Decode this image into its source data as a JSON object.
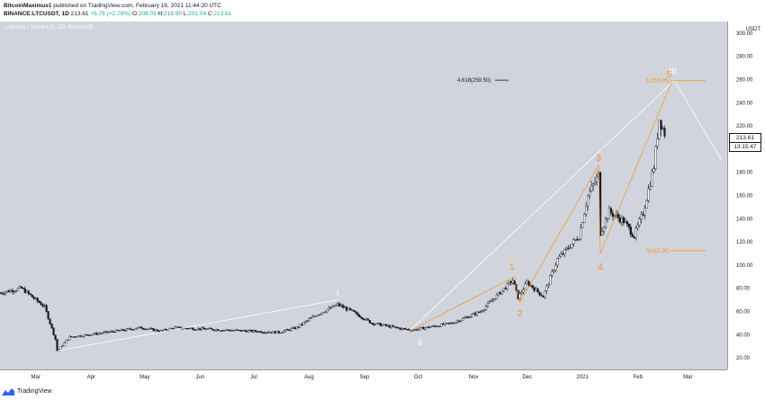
{
  "header": {
    "user": "BitcoinMaximus1",
    "published": "published on TradingView.com, February 16, 2021 11:44:20 UTC",
    "symbol": "BINANCE:LTCUSDT, 1D",
    "last": "213.61",
    "change": "+5.78 (+2.78%)",
    "o_label": "O:",
    "o": "208.03",
    "h_label": "H:",
    "h": "218.90",
    "l_label": "L:",
    "l": "201.04",
    "c_label": "C:",
    "c": "213.61"
  },
  "pair_label": "Litecoin / TetherUS, 1D, BINANCE",
  "axis_unit": "USDT",
  "price_tag": {
    "price": "213.61",
    "countdown": "13:15:47"
  },
  "footer": {
    "brand": "TradingView"
  },
  "colors": {
    "orange": "#f7931a",
    "white": "#ffffff",
    "background": "#d1d4dc",
    "candle": "#131722"
  },
  "chart_data": {
    "type": "candlestick",
    "x_ticks": [
      "Mar",
      "Apr",
      "May",
      "Jun",
      "Jul",
      "Aug",
      "Sep",
      "Oct",
      "Nov",
      "Dec",
      "2021",
      "Feb",
      "Mar"
    ],
    "y_ticks": [
      20,
      40,
      60,
      80,
      100,
      120,
      140,
      160,
      180,
      200,
      220,
      240,
      260,
      280,
      300
    ],
    "ylim": [
      10,
      310
    ],
    "x_range": [
      "2020-02-10",
      "2021-03-23"
    ],
    "price_path": [
      [
        "2020-02-10",
        76
      ],
      [
        "2020-02-22",
        80
      ],
      [
        "2020-03-06",
        64
      ],
      [
        "2020-03-12",
        36
      ],
      [
        "2020-03-13",
        26
      ],
      [
        "2020-03-20",
        38
      ],
      [
        "2020-04-05",
        41
      ],
      [
        "2020-04-29",
        46
      ],
      [
        "2020-05-10",
        43
      ],
      [
        "2020-05-18",
        46
      ],
      [
        "2020-06-15",
        44
      ],
      [
        "2020-07-15",
        42
      ],
      [
        "2020-07-25",
        46
      ],
      [
        "2020-08-05",
        57
      ],
      [
        "2020-08-17",
        66
      ],
      [
        "2020-08-25",
        60
      ],
      [
        "2020-09-05",
        50
      ],
      [
        "2020-09-22",
        45
      ],
      [
        "2020-09-28",
        44
      ],
      [
        "2020-10-20",
        50
      ],
      [
        "2020-11-05",
        60
      ],
      [
        "2020-11-23",
        87
      ],
      [
        "2020-11-26",
        72
      ],
      [
        "2020-12-01",
        85
      ],
      [
        "2020-12-10",
        73
      ],
      [
        "2020-12-18",
        105
      ],
      [
        "2020-12-30",
        125
      ],
      [
        "2021-01-04",
        160
      ],
      [
        "2021-01-10",
        178
      ],
      [
        "2021-01-11",
        128
      ],
      [
        "2021-01-16",
        146
      ],
      [
        "2021-01-24",
        138
      ],
      [
        "2021-01-30",
        125
      ],
      [
        "2021-02-04",
        145
      ],
      [
        "2021-02-10",
        185
      ],
      [
        "2021-02-13",
        226
      ],
      [
        "2021-02-16",
        213.61
      ]
    ],
    "horizontal_lines": [
      {
        "label": "4.618(259.50)",
        "value": 259.5
      },
      {
        "label": "1(259.05)",
        "value": 259.05
      },
      {
        "label": "0(112.36)",
        "value": 112.36
      }
    ],
    "wave_points": [
      {
        "label": "I",
        "date": "2020-08-17",
        "value": 70
      },
      {
        "label": "II",
        "date": "2020-09-26",
        "value": 43
      },
      {
        "label": "III",
        "date": "2021-02-22",
        "value": 260
      },
      {
        "label": "1",
        "date": "2020-11-24",
        "value": 90
      },
      {
        "label": "2",
        "date": "2020-11-27",
        "value": 68
      },
      {
        "label": "3",
        "date": "2021-01-10",
        "value": 186
      },
      {
        "label": "4",
        "date": "2021-01-11",
        "value": 110
      },
      {
        "label": "5",
        "date": "2021-02-20",
        "value": 258
      }
    ],
    "projection_path": [
      [
        "2021-02-22",
        258
      ],
      [
        "2021-03-20",
        190
      ]
    ]
  }
}
